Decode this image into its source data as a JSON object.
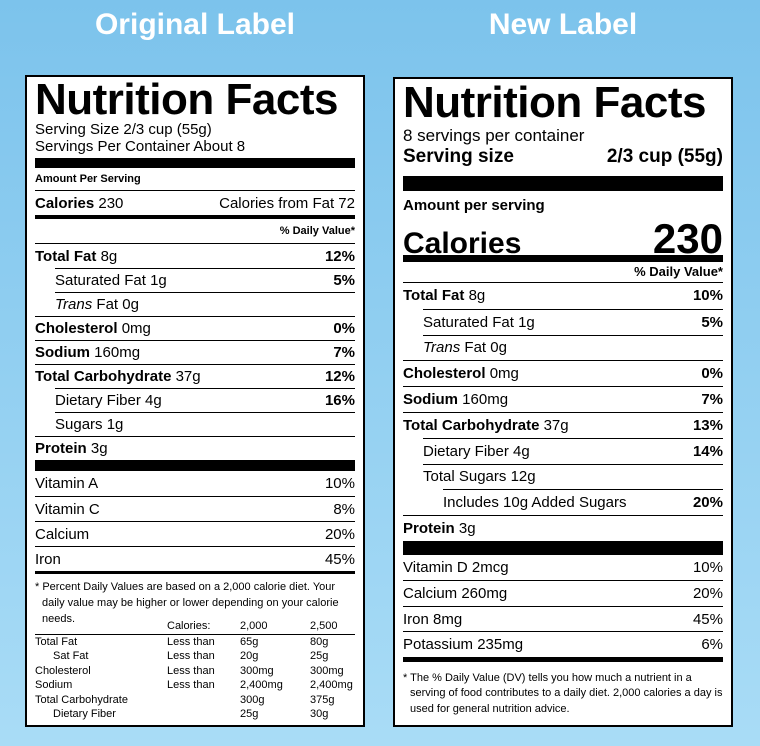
{
  "titles": {
    "original": "Original Label",
    "new": "New Label"
  },
  "original": {
    "heading": "Nutrition Facts",
    "serving_size": "Serving Size 2/3 cup (55g)",
    "servings_per_container": "Servings Per Container About 8",
    "amount_per_serving": "Amount Per Serving",
    "calories": {
      "label": "Calories",
      "value": "230",
      "from_fat": "Calories from Fat 72"
    },
    "dv_header": "% Daily Value*",
    "nutrients": [
      {
        "name": "Total Fat",
        "amount": "8g",
        "dv": "12%"
      },
      {
        "name": "Saturated Fat",
        "amount": "1g",
        "dv": "5%"
      },
      {
        "name": "Trans",
        "amount": "Fat 0g"
      },
      {
        "name": "Cholesterol",
        "amount": "0mg",
        "dv": "0%"
      },
      {
        "name": "Sodium",
        "amount": "160mg",
        "dv": "7%"
      },
      {
        "name": "Total Carbohydrate",
        "amount": "37g",
        "dv": "12%"
      },
      {
        "name": "Dietary Fiber",
        "amount": "4g",
        "dv": "16%"
      },
      {
        "name": "Sugars",
        "amount": "1g"
      },
      {
        "name": "Protein",
        "amount": "3g"
      }
    ],
    "vitamins": [
      {
        "name": "Vitamin A",
        "dv": "10%"
      },
      {
        "name": "Vitamin C",
        "dv": "8%"
      },
      {
        "name": "Calcium",
        "dv": "20%"
      },
      {
        "name": "Iron",
        "dv": "45%"
      }
    ],
    "footnote": "* Percent Daily Values are based on a 2,000 calorie diet. Your daily value may be higher or lower depending on your calorie needs.",
    "table": {
      "header": [
        "Calories:",
        "2,000",
        "2,500"
      ],
      "rows": [
        {
          "name": "Total Fat",
          "limit": "Less than",
          "d2000": "65g",
          "d2500": "80g"
        },
        {
          "name": "Sat Fat",
          "limit": "Less than",
          "d2000": "20g",
          "d2500": "25g"
        },
        {
          "name": "Cholesterol",
          "limit": "Less than",
          "d2000": "300mg",
          "d2500": "300mg"
        },
        {
          "name": "Sodium",
          "limit": "Less than",
          "d2000": "2,400mg",
          "d2500": "2,400mg"
        },
        {
          "name": "Total Carbohydrate",
          "d2000": "300g",
          "d2500": "375g"
        },
        {
          "name": "Dietary Fiber",
          "d2000": "25g",
          "d2500": "30g"
        }
      ]
    }
  },
  "new": {
    "heading": "Nutrition Facts",
    "servings_per_container": "8 servings per container",
    "serving_size": {
      "label": "Serving size",
      "value": "2/3 cup (55g)"
    },
    "amount_per_serving": "Amount per serving",
    "calories": {
      "label": "Calories",
      "value": "230"
    },
    "dv_header": "% Daily Value*",
    "nutrients": [
      {
        "name": "Total Fat",
        "amount": "8g",
        "dv": "10%"
      },
      {
        "name": "Saturated Fat",
        "amount": "1g",
        "dv": "5%"
      },
      {
        "name": "Trans",
        "amount": "Fat 0g"
      },
      {
        "name": "Cholesterol",
        "amount": "0mg",
        "dv": "0%"
      },
      {
        "name": "Sodium",
        "amount": "160mg",
        "dv": "7%"
      },
      {
        "name": "Total Carbohydrate",
        "amount": "37g",
        "dv": "13%"
      },
      {
        "name": "Dietary Fiber",
        "amount": "4g",
        "dv": "14%"
      },
      {
        "name": "Total Sugars",
        "amount": "12g"
      },
      {
        "name": "Includes 10g Added Sugars",
        "dv": "20%"
      },
      {
        "name": "Protein",
        "amount": "3g"
      }
    ],
    "vitamins": [
      {
        "name": "Vitamin D 2mcg",
        "dv": "10%"
      },
      {
        "name": "Calcium 260mg",
        "dv": "20%"
      },
      {
        "name": "Iron 8mg",
        "dv": "45%"
      },
      {
        "name": "Potassium 235mg",
        "dv": "6%"
      }
    ],
    "footnote": "* The % Daily Value (DV) tells you how much a nutrient in a serving of food contributes to a daily diet. 2,000 calories a day is used for general nutrition advice."
  }
}
